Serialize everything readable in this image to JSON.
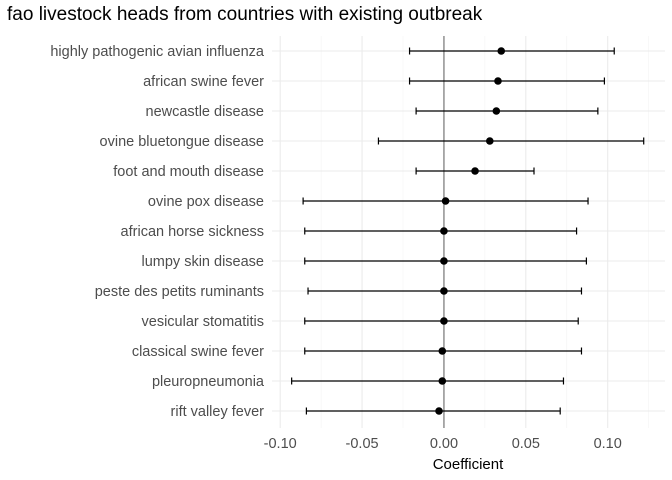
{
  "chart_data": {
    "type": "scatter",
    "title": "fao livestock heads from countries with existing outbreak",
    "xlabel": "Coefficient",
    "ylabel": "",
    "xlim": [
      -0.105,
      0.135
    ],
    "xticks": [
      -0.1,
      -0.05,
      0.0,
      0.05,
      0.1
    ],
    "xtick_labels": [
      "-0.10",
      "-0.05",
      "0.00",
      "0.05",
      "0.10"
    ],
    "reference_line_x": 0,
    "grid": true,
    "legend": "none",
    "point_color": "#000000",
    "categories": [
      "highly pathogenic avian influenza",
      "african swine fever",
      "newcastle disease",
      "ovine bluetongue disease",
      "foot and mouth disease",
      "ovine pox disease",
      "african horse sickness",
      "lumpy skin disease",
      "peste des petits ruminants",
      "vesicular stomatitis",
      "classical swine fever",
      "pleuropneumonia",
      "rift valley fever"
    ],
    "estimate": [
      0.035,
      0.033,
      0.032,
      0.028,
      0.019,
      0.001,
      0.0,
      0.0,
      0.0,
      0.0,
      -0.001,
      -0.001,
      -0.003
    ],
    "ci_low": [
      -0.021,
      -0.021,
      -0.017,
      -0.04,
      -0.017,
      -0.086,
      -0.085,
      -0.085,
      -0.083,
      -0.085,
      -0.085,
      -0.093,
      -0.084
    ],
    "ci_high": [
      0.104,
      0.098,
      0.094,
      0.122,
      0.055,
      0.088,
      0.081,
      0.087,
      0.084,
      0.082,
      0.084,
      0.073,
      0.071
    ]
  }
}
